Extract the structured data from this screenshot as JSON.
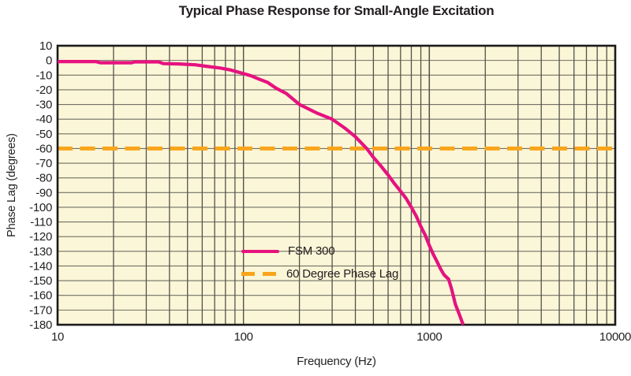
{
  "chart_data": {
    "type": "line",
    "title": "Typical Phase Response for Small-Angle Excitation",
    "xlabel": "Frequency (Hz)",
    "ylabel": "Phase Lag (degrees)",
    "x_scale": "log",
    "xlim": [
      10,
      10000
    ],
    "x_ticks": [
      10,
      100,
      1000,
      10000
    ],
    "ylim": [
      -180,
      10
    ],
    "y_tick_step": 10,
    "grid": true,
    "legend_position": "inside-center-left",
    "colors": {
      "plot_background": "#fbf6d7",
      "grid_vertical": "#53534c",
      "grid_horizontal": "#716f66",
      "border": "#1a1a1a",
      "text": "#231f20"
    },
    "series": [
      {
        "name": "FSM 300",
        "style": "solid",
        "color": "#e6127f",
        "line_width": 4.2,
        "points": [
          [
            10,
            -0.8
          ],
          [
            16,
            -0.8
          ],
          [
            17,
            -1.6
          ],
          [
            25,
            -1.6
          ],
          [
            26,
            -1.0
          ],
          [
            35,
            -1.0
          ],
          [
            37,
            -2.2
          ],
          [
            45,
            -2.4
          ],
          [
            55,
            -3.0
          ],
          [
            65,
            -4.2
          ],
          [
            75,
            -5.2
          ],
          [
            85,
            -6.5
          ],
          [
            100,
            -9
          ],
          [
            110,
            -10.5
          ],
          [
            120,
            -12.5
          ],
          [
            135,
            -15
          ],
          [
            150,
            -19
          ],
          [
            170,
            -22.5
          ],
          [
            200,
            -30
          ],
          [
            250,
            -36
          ],
          [
            300,
            -40
          ],
          [
            350,
            -46
          ],
          [
            400,
            -52
          ],
          [
            460,
            -60
          ],
          [
            500,
            -66
          ],
          [
            550,
            -72
          ],
          [
            600,
            -78
          ],
          [
            650,
            -84
          ],
          [
            700,
            -89
          ],
          [
            750,
            -94
          ],
          [
            800,
            -100
          ],
          [
            850,
            -106
          ],
          [
            900,
            -113
          ],
          [
            950,
            -119
          ],
          [
            1000,
            -126
          ],
          [
            1050,
            -132
          ],
          [
            1100,
            -137
          ],
          [
            1150,
            -142
          ],
          [
            1200,
            -146
          ],
          [
            1270,
            -149
          ],
          [
            1320,
            -156
          ],
          [
            1380,
            -166
          ],
          [
            1450,
            -173
          ],
          [
            1520,
            -180
          ]
        ]
      },
      {
        "name": "60 Degree Phase Lag",
        "style": "dashed",
        "color": "#f9a51b",
        "line_width": 5,
        "dash": [
          19,
          9.5
        ],
        "y_value": -60
      }
    ]
  }
}
